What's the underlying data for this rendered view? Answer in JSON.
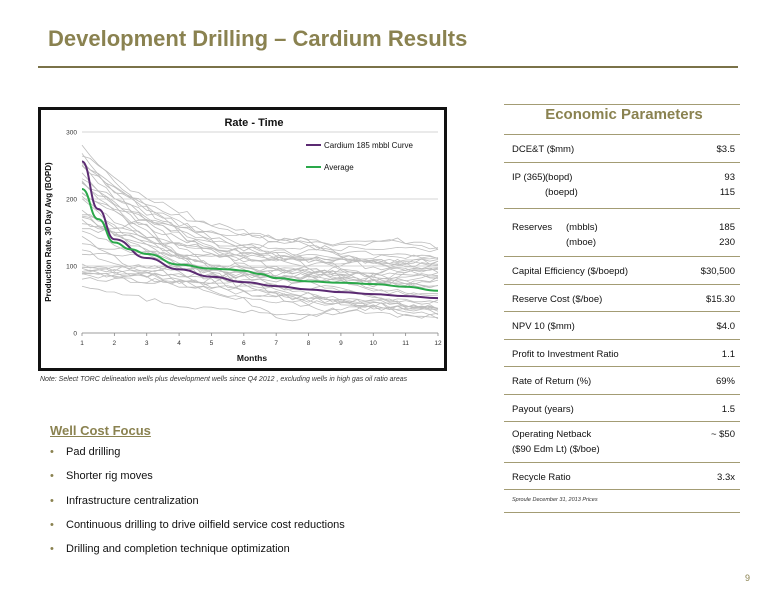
{
  "page": {
    "title": "Development Drilling – Cardium Results",
    "note": "Note: Select TORC delineation wells plus development wells since Q4 2012 , excluding wells in high gas oil ratio areas",
    "page_number": "9"
  },
  "chart_data": {
    "type": "line",
    "title": "Rate - Time",
    "xlabel": "Months",
    "ylabel": "Production Rate, 30 Day Avg (BOPD)",
    "xlim": [
      1,
      12
    ],
    "ylim": [
      0,
      300
    ],
    "x_ticks": [
      "1",
      "2",
      "3",
      "4",
      "5",
      "6",
      "7",
      "8",
      "9",
      "10",
      "11",
      "12"
    ],
    "y_ticks": [
      "0",
      "100",
      "200",
      "300"
    ],
    "grid": "horizontal",
    "legend_position": "top-right",
    "colors": {
      "curve": "#5b2a72",
      "average": "#2aa84a",
      "wells": "#bdbdbd"
    },
    "series": [
      {
        "name": "Cardium 185 mbbl Curve",
        "x": [
          1,
          1.5,
          2,
          3,
          4,
          5,
          6,
          7,
          8,
          9,
          10,
          11,
          12
        ],
        "values": [
          256,
          185,
          140,
          112,
          95,
          84,
          76,
          70,
          65,
          61,
          58,
          55,
          52
        ]
      },
      {
        "name": "Average",
        "x": [
          1,
          1.5,
          2,
          2.5,
          3,
          4,
          5,
          5.5,
          6,
          6.5,
          7,
          8,
          9,
          10,
          11,
          12
        ],
        "values": [
          215,
          170,
          135,
          125,
          118,
          102,
          96,
          95,
          93,
          88,
          82,
          77,
          75,
          73,
          69,
          63
        ]
      }
    ]
  },
  "economics": {
    "title": "Economic Parameters",
    "rows": [
      {
        "label": "DCE&T ($mm)",
        "value": "$3.5"
      },
      {
        "label": "IP (365)",
        "sub": "(bopd)",
        "value": "93",
        "sub2": "(boepd)",
        "value2": "115"
      },
      {
        "label": "Reserves",
        "sub": "(mbbls)",
        "value": "185",
        "sub2": "(mboe)",
        "value2": "230"
      },
      {
        "label": "Capital Efficiency ($/boepd)",
        "value": "$30,500"
      },
      {
        "label": "Reserve Cost ($/boe)",
        "value": "$15.30"
      },
      {
        "label": "NPV 10 ($mm)",
        "value": "$4.0"
      },
      {
        "label": "Profit to Investment Ratio",
        "value": "1.1"
      },
      {
        "label": "Rate of Return (%)",
        "value": "69%"
      },
      {
        "label": "Payout (years)",
        "value": "1.5"
      },
      {
        "label": "Operating Netback",
        "label2": "($90 Edm Lt) ($/boe)",
        "value": "~ $50"
      },
      {
        "label": "Recycle Ratio",
        "value": "3.3x"
      }
    ],
    "source": "Sproule December 31, 2013 Prices"
  },
  "well_cost": {
    "title": "Well Cost Focus",
    "bullet": "•",
    "items": [
      "Pad drilling",
      "Shorter rig moves",
      "Infrastructure centralization",
      "Continuous drilling to drive oilfield service cost reductions",
      "Drilling and completion technique optimization"
    ]
  }
}
